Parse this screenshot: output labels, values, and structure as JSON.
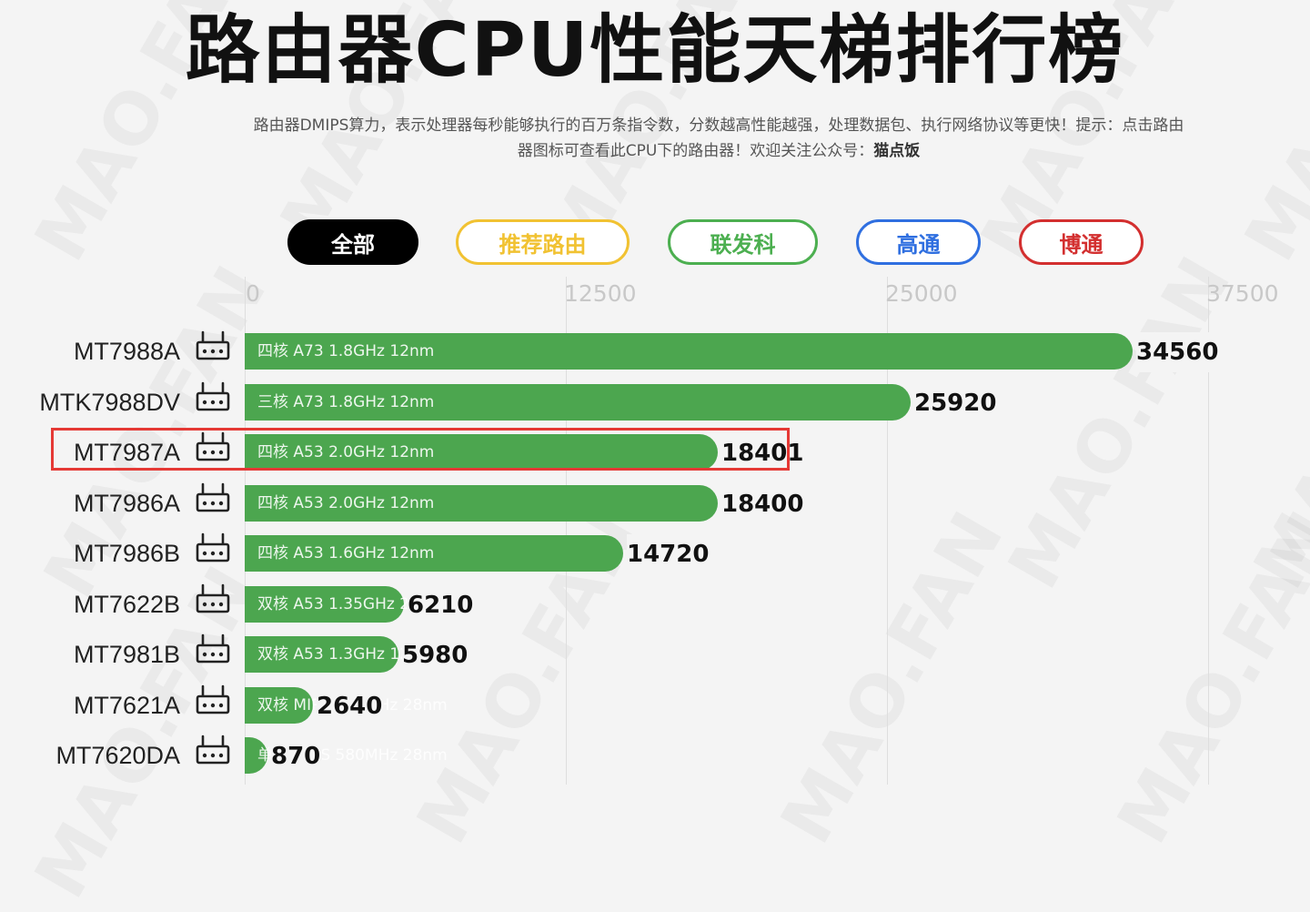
{
  "page": {
    "title": "路由器CPU性能天梯排行榜",
    "subtitle_line1": "路由器DMIPS算力，表示处理器每秒能够执行的百万条指令数，分数越高性能越强，处理数据包、执行网络协议等更快！提示：点击路由",
    "subtitle_line2_prefix": "器图标可查看此CPU下的路由器！欢迎关注公众号：",
    "subtitle_line2_bold": "猫点饭",
    "watermark": "MAO.FAN"
  },
  "filters": [
    {
      "label": "全部",
      "active": true,
      "color": "#000000"
    },
    {
      "label": "推荐路由",
      "active": false,
      "color": "#f1c232"
    },
    {
      "label": "联发科",
      "active": false,
      "color": "#4caf50"
    },
    {
      "label": "高通",
      "active": false,
      "color": "#2f6fe0"
    },
    {
      "label": "博通",
      "active": false,
      "color": "#d32f2f"
    }
  ],
  "chart_data": {
    "type": "bar",
    "orientation": "horizontal",
    "xlim": [
      0,
      37500
    ],
    "x_ticks": [
      "0",
      "12500",
      "25000",
      "37500"
    ],
    "bar_color": "#4ca64f",
    "highlighted_category": "MT7987A",
    "categories": [
      "MT7988A",
      "MTK7988DV",
      "MT7987A",
      "MT7986A",
      "MT7986B",
      "MT7622B",
      "MT7981B",
      "MT7621A",
      "MT7620DA"
    ],
    "values": [
      34560,
      25920,
      18401,
      18400,
      14720,
      6210,
      5980,
      2640,
      870
    ],
    "value_labels": [
      "34560",
      "25920",
      "18401",
      "18400",
      "14720",
      "6210",
      "5980",
      "2640",
      "870"
    ],
    "specs": [
      "四核 A73 1.8GHz 12nm",
      "三核 A73 1.8GHz 12nm",
      "四核 A53 2.0GHz 12nm",
      "四核 A53 2.0GHz 12nm",
      "四核 A53 1.6GHz 12nm",
      "双核 A53 1.35GHz 28nm",
      "双核 A53 1.3GHz 12nm",
      "双核 MIPS 880MHz 28nm",
      "单核 MIPS 580MHz 28nm"
    ],
    "grid": true
  }
}
